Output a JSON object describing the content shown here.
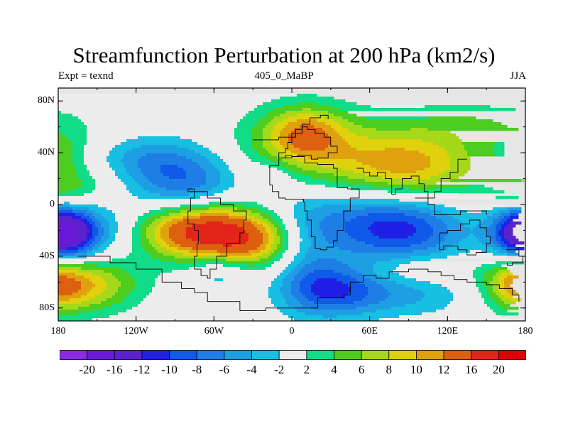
{
  "title": "Streamfunction Perturbation at 200 hPa (km2/s)",
  "left_label": "Expt = texnd",
  "center_label": "405_0_MaBP",
  "right_label": "JJA",
  "chart_data": {
    "type": "heatmap",
    "projection": "cylindrical equidistant",
    "variable": "Streamfunction perturbation at 200 hPa",
    "units": "km2/s",
    "xlim": [
      -180,
      180
    ],
    "ylim": [
      -90,
      90
    ],
    "x_ticks": [
      {
        "value": -180,
        "label": "180"
      },
      {
        "value": -120,
        "label": "120W"
      },
      {
        "value": -60,
        "label": "60W"
      },
      {
        "value": 0,
        "label": "0"
      },
      {
        "value": 60,
        "label": "60E"
      },
      {
        "value": 120,
        "label": "120E"
      },
      {
        "value": 180,
        "label": "180"
      }
    ],
    "y_ticks": [
      {
        "value": 80,
        "label": "80N"
      },
      {
        "value": 40,
        "label": "40N"
      },
      {
        "value": 0,
        "label": "0"
      },
      {
        "value": -40,
        "label": "40S"
      },
      {
        "value": -80,
        "label": "80S"
      }
    ],
    "levels": [
      -20,
      -16,
      -12,
      -10,
      -8,
      -6,
      -4,
      -2,
      2,
      4,
      6,
      8,
      10,
      12,
      16,
      20
    ],
    "level_labels": [
      "-20",
      "-16",
      "-12",
      "-10",
      "-8",
      "-6",
      "-4",
      "-2",
      "2",
      "4",
      "6",
      "8",
      "10",
      "12",
      "16",
      "20"
    ],
    "colors": [
      "#8a2be2",
      "#6a1ad6",
      "#5a22cc",
      "#1f1fe6",
      "#0f5ae8",
      "#1e7ee6",
      "#1f9fe3",
      "#17bfe3",
      "#ececec",
      "#11dc87",
      "#4ccd20",
      "#a6d81a",
      "#dfd10c",
      "#e0a10e",
      "#dd5f10",
      "#e22518",
      "#e00000"
    ],
    "background_color": "#e6e6e6",
    "features": [
      {
        "lon": 10,
        "lat": 55,
        "peak": 9,
        "rx": 22,
        "ry": 15
      },
      {
        "lon": 18,
        "lat": 42,
        "peak": 5,
        "rx": 55,
        "ry": 22
      },
      {
        "lon": 92,
        "lat": 30,
        "peak": 9.5,
        "rx": 42,
        "ry": 18
      },
      {
        "lon": 145,
        "lat": 62,
        "peak": 3.5,
        "rx": 45,
        "ry": 12
      },
      {
        "lon": -175,
        "lat": 40,
        "peak": 3.5,
        "rx": 14,
        "ry": 12
      },
      {
        "lon": -170,
        "lat": 12,
        "peak": 3,
        "rx": 28,
        "ry": 12
      },
      {
        "lon": 178,
        "lat": 12,
        "peak": 3,
        "rx": 18,
        "ry": 12
      },
      {
        "lon": -82,
        "lat": 18,
        "peak": -8.5,
        "rx": 30,
        "ry": 20
      },
      {
        "lon": -115,
        "lat": 36,
        "peak": -3.5,
        "rx": 25,
        "ry": 12
      },
      {
        "lon": -70,
        "lat": -20,
        "peak": 18,
        "rx": 35,
        "ry": 15
      },
      {
        "lon": -30,
        "lat": -30,
        "peak": 8,
        "rx": 25,
        "ry": 14
      },
      {
        "lon": -175,
        "lat": -23,
        "peak": -11.5,
        "rx": 18,
        "ry": 15
      },
      {
        "lon": -140,
        "lat": -20,
        "peak": -4,
        "rx": 25,
        "ry": 15
      },
      {
        "lon": 85,
        "lat": -20,
        "peak": -9.5,
        "rx": 35,
        "ry": 18
      },
      {
        "lon": 35,
        "lat": -10,
        "peak": -4,
        "rx": 40,
        "ry": 18
      },
      {
        "lon": 10,
        "lat": -40,
        "peak": -3.5,
        "rx": 18,
        "ry": 28
      },
      {
        "lon": 30,
        "lat": -65,
        "peak": -8,
        "rx": 25,
        "ry": 15
      },
      {
        "lon": 80,
        "lat": -70,
        "peak": -4.5,
        "rx": 40,
        "ry": 12
      },
      {
        "lon": 178,
        "lat": -22,
        "peak": -8,
        "rx": 18,
        "ry": 15
      },
      {
        "lon": -160,
        "lat": -62,
        "peak": 9,
        "rx": 30,
        "ry": 15
      },
      {
        "lon": 175,
        "lat": -60,
        "peak": 8,
        "rx": 18,
        "ry": 15
      },
      {
        "lon": 100,
        "lat": -50,
        "peak": 3,
        "rx": 30,
        "ry": 8
      },
      {
        "lon": -55,
        "lat": -52,
        "peak": -4,
        "rx": 15,
        "ry": 10
      },
      {
        "lon": -15,
        "lat": 20,
        "peak": -3,
        "rx": 12,
        "ry": 10
      }
    ],
    "coastlines": [
      [
        [
          -10,
          40
        ],
        [
          -5,
          43
        ],
        [
          -3,
          48
        ],
        [
          0,
          52
        ],
        [
          3,
          58
        ],
        [
          8,
          60
        ],
        [
          12,
          58
        ],
        [
          18,
          55
        ],
        [
          25,
          52
        ],
        [
          30,
          45
        ],
        [
          35,
          40
        ],
        [
          28,
          36
        ],
        [
          20,
          35
        ],
        [
          15,
          38
        ],
        [
          10,
          38
        ],
        [
          5,
          37
        ],
        [
          0,
          38
        ],
        [
          -5,
          36
        ],
        [
          -10,
          36
        ],
        [
          -10,
          40
        ]
      ],
      [
        [
          -17,
          20
        ],
        [
          -17,
          15
        ],
        [
          -15,
          10
        ],
        [
          -10,
          5
        ],
        [
          -5,
          4
        ],
        [
          5,
          4
        ],
        [
          9,
          2
        ],
        [
          10,
          -5
        ],
        [
          12,
          -12
        ],
        [
          15,
          -25
        ],
        [
          18,
          -34
        ],
        [
          22,
          -35
        ],
        [
          27,
          -33
        ],
        [
          32,
          -28
        ],
        [
          35,
          -20
        ],
        [
          40,
          -15
        ],
        [
          40,
          -5
        ],
        [
          45,
          5
        ],
        [
          52,
          12
        ],
        [
          43,
          13
        ],
        [
          35,
          28
        ],
        [
          32,
          31
        ],
        [
          20,
          32
        ],
        [
          10,
          37
        ],
        [
          0,
          36
        ],
        [
          -10,
          30
        ],
        [
          -17,
          20
        ]
      ],
      [
        [
          40,
          -70
        ],
        [
          45,
          -60
        ],
        [
          55,
          -55
        ],
        [
          65,
          -57
        ],
        [
          75,
          -52
        ],
        [
          90,
          -50
        ],
        [
          105,
          -52
        ],
        [
          115,
          -55
        ],
        [
          125,
          -58
        ],
        [
          135,
          -60
        ],
        [
          150,
          -62
        ],
        [
          160,
          -65
        ],
        [
          170,
          -70
        ],
        [
          175,
          -75
        ]
      ],
      [
        [
          -80,
          10
        ],
        [
          -75,
          5
        ],
        [
          -78,
          -5
        ],
        [
          -80,
          -15
        ],
        [
          -75,
          -20
        ],
        [
          -72,
          -30
        ],
        [
          -73,
          -40
        ],
        [
          -75,
          -50
        ],
        [
          -70,
          -55
        ],
        [
          -65,
          -57
        ],
        [
          -63,
          -50
        ],
        [
          -58,
          -40
        ],
        [
          -50,
          -30
        ],
        [
          -40,
          -22
        ],
        [
          -37,
          -12
        ],
        [
          -35,
          -5
        ],
        [
          -45,
          0
        ],
        [
          -55,
          5
        ],
        [
          -65,
          10
        ],
        [
          -75,
          12
        ],
        [
          -80,
          10
        ]
      ],
      [
        [
          -165,
          -40
        ],
        [
          -140,
          -45
        ],
        [
          -120,
          -50
        ],
        [
          -100,
          -60
        ],
        [
          -85,
          -65
        ],
        [
          -75,
          -68
        ],
        [
          -65,
          -75
        ],
        [
          -40,
          -82
        ],
        [
          -20,
          -80
        ],
        [
          0,
          -80
        ],
        [
          20,
          -72
        ],
        [
          40,
          -70
        ]
      ],
      [
        [
          -30,
          50
        ],
        [
          -10,
          52
        ],
        [
          0,
          55
        ],
        [
          8,
          62
        ],
        [
          14,
          67
        ],
        [
          22,
          69
        ],
        [
          28,
          66
        ]
      ],
      [
        [
          50,
          28
        ],
        [
          55,
          25
        ],
        [
          60,
          22
        ],
        [
          66,
          25
        ],
        [
          72,
          20
        ],
        [
          77,
          8
        ],
        [
          80,
          12
        ],
        [
          85,
          20
        ],
        [
          92,
          22
        ],
        [
          98,
          16
        ],
        [
          102,
          10
        ],
        [
          105,
          5
        ],
        [
          110,
          10
        ],
        [
          115,
          20
        ],
        [
          122,
          25
        ],
        [
          128,
          35
        ],
        [
          135,
          35
        ]
      ],
      [
        [
          114,
          -22
        ],
        [
          120,
          -20
        ],
        [
          130,
          -15
        ],
        [
          137,
          -12
        ],
        [
          142,
          -12
        ],
        [
          145,
          -18
        ],
        [
          150,
          -25
        ],
        [
          153,
          -30
        ],
        [
          150,
          -37
        ],
        [
          142,
          -39
        ],
        [
          135,
          -35
        ],
        [
          128,
          -32
        ],
        [
          117,
          -35
        ],
        [
          114,
          -28
        ],
        [
          114,
          -22
        ]
      ],
      [
        [
          165,
          -35
        ],
        [
          175,
          -40
        ],
        [
          178,
          -45
        ],
        [
          170,
          -47
        ],
        [
          166,
          -45
        ]
      ],
      [
        [
          95,
          5
        ],
        [
          105,
          0
        ],
        [
          110,
          -8
        ],
        [
          120,
          -8
        ],
        [
          130,
          -5
        ],
        [
          140,
          -5
        ],
        [
          150,
          -8
        ]
      ]
    ]
  }
}
